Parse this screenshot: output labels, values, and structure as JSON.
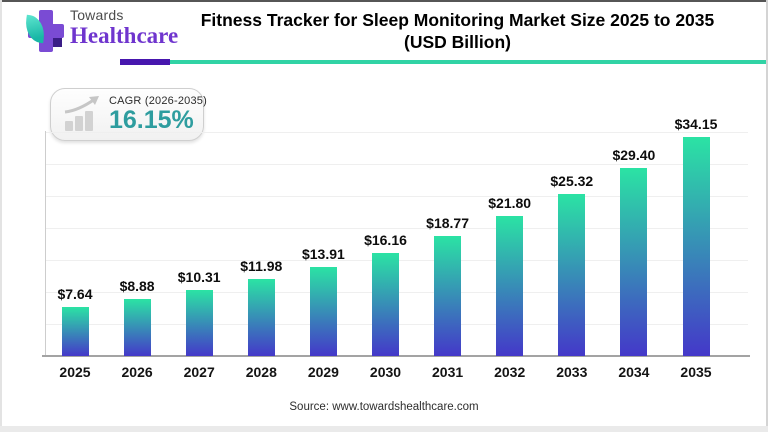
{
  "header": {
    "logo": {
      "line1": "Towards",
      "line2": "Healthcare"
    },
    "title_line1": "Fitness Tracker for Sleep Monitoring Market Size 2025 to 2035",
    "title_line2": "(USD Billion)"
  },
  "cagr_badge": {
    "label": "CAGR (2026-2035)",
    "value": "16.15%",
    "icon": "bar-chart-growth-icon",
    "value_color": "#2E9D9F"
  },
  "chart_data": {
    "type": "bar",
    "title": "Fitness Tracker for Sleep Monitoring Market Size 2025 to 2035 (USD Billion)",
    "categories": [
      "2025",
      "2026",
      "2027",
      "2028",
      "2029",
      "2030",
      "2031",
      "2032",
      "2033",
      "2034",
      "2035"
    ],
    "values": [
      7.64,
      8.88,
      10.31,
      11.98,
      13.91,
      16.16,
      18.77,
      21.8,
      25.32,
      29.4,
      34.15
    ],
    "value_prefix": "$",
    "xlabel": "",
    "ylabel": "",
    "ylim": [
      0,
      35
    ],
    "gridline_step": 5,
    "grid": true,
    "legend": "none",
    "bar_gradient_top": "#2be3a4",
    "bar_gradient_bottom": "#4438c9"
  },
  "footer": {
    "source": "Source: www.towardshealthcare.com"
  },
  "colors": {
    "underline_purple": "#4716ae",
    "underline_teal": "#31d3a5",
    "logo_purple": "#7a4bd4",
    "logo_leaf_teal": "#19b7a6",
    "accent_teal": "#2e9d9f"
  }
}
